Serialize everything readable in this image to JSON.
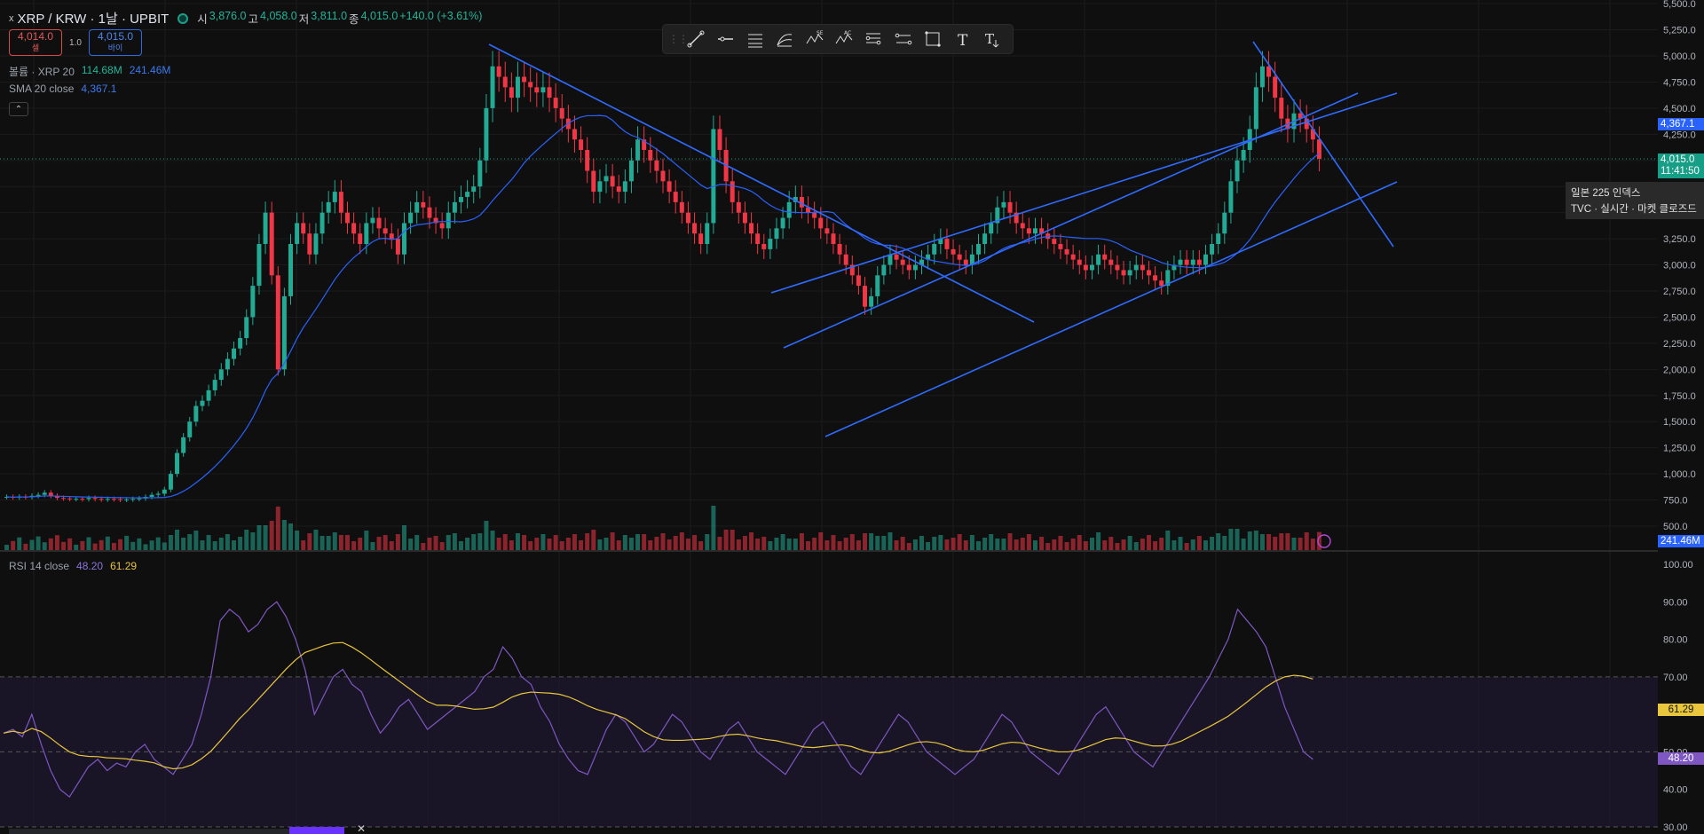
{
  "header": {
    "symbol": "XRP / KRW · 1날 · UPBIT",
    "logo": "x",
    "ohlc": {
      "o_label": "시",
      "o": "3,876.0",
      "h_label": "고",
      "h": "4,058.0",
      "l_label": "저",
      "l": "3,811.0",
      "c_label": "종",
      "c": "4,015.0",
      "chg": "+140.0 (+3.61%)"
    }
  },
  "trade": {
    "sell_price": "4,014.0",
    "sell_label": "셀",
    "spread": "1.0",
    "buy_price": "4,015.0",
    "buy_label": "바이"
  },
  "indicators": {
    "volume": {
      "label": "볼륨 · XRP 20",
      "v1": "114.68M",
      "v2": "241.46M"
    },
    "sma": {
      "label": "SMA 20 close",
      "v": "4,367.1"
    },
    "rsi": {
      "label": "RSI 14 close",
      "v1": "48.20",
      "v2": "61.29"
    }
  },
  "collapse_icon": "chevron-up-icon",
  "toolbar": {
    "items": [
      "trendline-icon",
      "horizontal-ray-icon",
      "parallel-channel-icon",
      "fib-icon",
      "xabcd-icon",
      "abcd-icon",
      "fib-channel-icon",
      "range-icon",
      "rectangle-icon",
      "text-icon",
      "text-note-icon"
    ]
  },
  "price_axis": {
    "ticks": [
      "5,500.0",
      "5,250.0",
      "5,000.0",
      "4,750.0",
      "4,500.0",
      "4,250.0",
      "3,250.0",
      "3,000.0",
      "2,750.0",
      "2,500.0",
      "2,250.0",
      "2,000.0",
      "1,750.0",
      "1,500.0",
      "1,250.0",
      "1,000.0",
      "750.0",
      "500.0"
    ],
    "sma_label": "4,367.1",
    "last_price": "4,015.0",
    "countdown": "11:41:50",
    "volume_label": "241.46M"
  },
  "rsi_axis": {
    "ticks": [
      "100.00",
      "90.00",
      "80.00",
      "70.00",
      "50.00",
      "40.00",
      "30.00"
    ],
    "rsi_ma": "61.29",
    "rsi": "48.20"
  },
  "tooltip": {
    "line1": "일본 225 인덱스",
    "line2": "TVC · 실시간 · 마켓 클로즈드"
  },
  "colors": {
    "up": "#22ab94",
    "down": "#f23645",
    "sma": "#2962ff",
    "trend": "#2f6bff",
    "rsi": "#7e57c2",
    "rsi_ma": "#e8c63d",
    "band": "#1e1830"
  },
  "chart_data": {
    "type": "candlestick",
    "series": [
      {
        "name": "XRP / KRW",
        "close": [
          780,
          775,
          782,
          778,
          790,
          800,
          820,
          790,
          770,
          765,
          760,
          762,
          758,
          770,
          760,
          755,
          760,
          758,
          752,
          755,
          760,
          765,
          780,
          800,
          810,
          850,
          1000,
          1200,
          1350,
          1500,
          1650,
          1700,
          1800,
          1900,
          2000,
          2100,
          2200,
          2300,
          2500,
          2800,
          3200,
          3500,
          2900,
          2000,
          2700,
          3200,
          3400,
          3300,
          3100,
          3300,
          3500,
          3600,
          3700,
          3500,
          3400,
          3300,
          3200,
          3400,
          3450,
          3350,
          3300,
          3250,
          3100,
          3400,
          3500,
          3600,
          3550,
          3450,
          3400,
          3350,
          3500,
          3600,
          3650,
          3700,
          3750,
          4000,
          4500,
          4900,
          4800,
          4700,
          4600,
          4800,
          4750,
          4700,
          4650,
          4700,
          4600,
          4500,
          4400,
          4300,
          4200,
          4100,
          3900,
          3700,
          3800,
          3850,
          3750,
          3700,
          3800,
          4000,
          4200,
          4100,
          4000,
          3900,
          3800,
          3700,
          3600,
          3500,
          3400,
          3300,
          3200,
          3400,
          4300,
          4100,
          3800,
          3600,
          3500,
          3400,
          3300,
          3200,
          3150,
          3250,
          3350,
          3450,
          3600,
          3650,
          3550,
          3500,
          3450,
          3350,
          3300,
          3200,
          3100,
          3000,
          2900,
          2800,
          2600,
          2700,
          2900,
          3000,
          3100,
          3050,
          3000,
          2950,
          3000,
          3050,
          3100,
          3200,
          3250,
          3150,
          3100,
          3050,
          3000,
          3100,
          3200,
          3300,
          3400,
          3550,
          3600,
          3500,
          3400,
          3350,
          3300,
          3350,
          3300,
          3250,
          3200,
          3150,
          3100,
          3050,
          3000,
          2950,
          3000,
          3100,
          3050,
          3000,
          2950,
          2900,
          2950,
          3000,
          2950,
          2900,
          2850,
          2800,
          2950,
          3000,
          3050,
          3000,
          3050,
          3000,
          3100,
          3200,
          3300,
          3500,
          3800,
          4000,
          4100,
          4300,
          4700,
          4900,
          4800,
          4600,
          4400,
          4300,
          4450,
          4400,
          4300,
          4200,
          4015
        ]
      }
    ],
    "rsi": [
      55,
      56,
      54,
      60,
      52,
      45,
      40,
      38,
      42,
      46,
      48,
      45,
      47,
      46,
      50,
      52,
      48,
      46,
      44,
      48,
      52,
      60,
      70,
      85,
      88,
      86,
      82,
      84,
      88,
      90,
      86,
      80,
      72,
      60,
      65,
      70,
      72,
      68,
      66,
      60,
      55,
      58,
      62,
      64,
      60,
      56,
      58,
      60,
      62,
      64,
      66,
      70,
      72,
      78,
      75,
      70,
      68,
      62,
      58,
      52,
      48,
      45,
      44,
      50,
      56,
      60,
      58,
      54,
      50,
      52,
      56,
      60,
      58,
      54,
      50,
      48,
      52,
      56,
      58,
      54,
      50,
      48,
      46,
      44,
      48,
      52,
      56,
      58,
      54,
      50,
      46,
      44,
      48,
      52,
      56,
      60,
      58,
      54,
      50,
      48,
      46,
      44,
      46,
      48,
      52,
      56,
      60,
      58,
      54,
      50,
      48,
      46,
      44,
      48,
      52,
      56,
      60,
      62,
      58,
      54,
      50,
      48,
      46,
      50,
      54,
      58,
      62,
      66,
      70,
      75,
      80,
      88,
      85,
      82,
      78,
      70,
      62,
      56,
      50,
      48
    ]
  }
}
